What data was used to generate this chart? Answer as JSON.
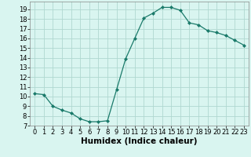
{
  "x": [
    0,
    1,
    2,
    3,
    4,
    5,
    6,
    7,
    8,
    9,
    10,
    11,
    12,
    13,
    14,
    15,
    16,
    17,
    18,
    19,
    20,
    21,
    22,
    23
  ],
  "y": [
    10.3,
    10.2,
    9.0,
    8.6,
    8.3,
    7.7,
    7.4,
    7.4,
    7.5,
    10.7,
    13.9,
    16.0,
    18.1,
    18.6,
    19.2,
    19.2,
    18.9,
    17.6,
    17.4,
    16.8,
    16.6,
    16.3,
    15.8,
    15.3
  ],
  "line_color": "#1a7a6a",
  "marker_color": "#1a7a6a",
  "bg_color": "#d9f5f0",
  "grid_color": "#b0d8d0",
  "xlabel": "Humidex (Indice chaleur)",
  "xlim": [
    -0.5,
    23.5
  ],
  "ylim": [
    7,
    19.8
  ],
  "yticks": [
    7,
    8,
    9,
    10,
    11,
    12,
    13,
    14,
    15,
    16,
    17,
    18,
    19
  ],
  "xticks": [
    0,
    1,
    2,
    3,
    4,
    5,
    6,
    7,
    8,
    9,
    10,
    11,
    12,
    13,
    14,
    15,
    16,
    17,
    18,
    19,
    20,
    21,
    22,
    23
  ],
  "xlabel_fontsize": 7.5,
  "tick_fontsize": 6.0
}
